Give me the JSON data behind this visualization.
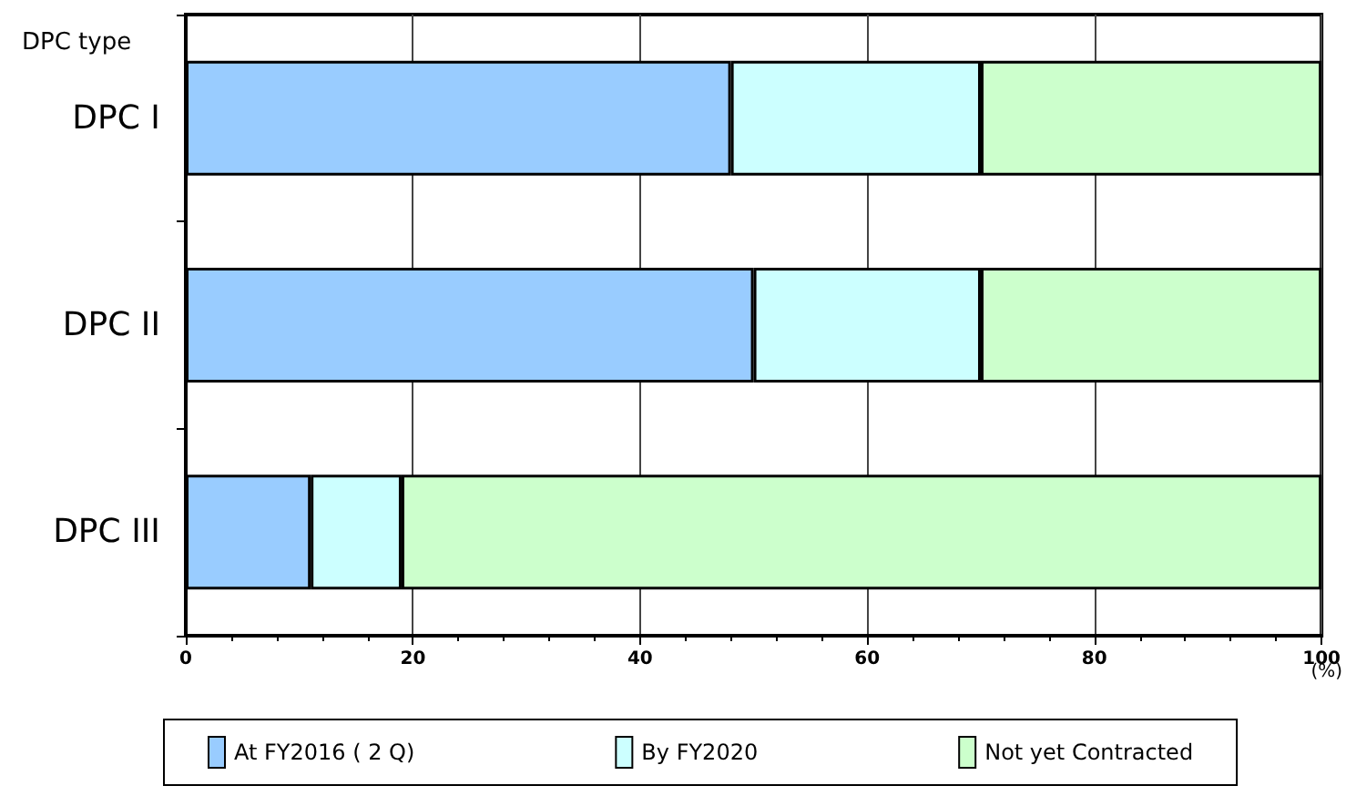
{
  "chart_data": {
    "type": "bar",
    "orientation": "horizontal",
    "stacked": true,
    "ylabel": "DPC type",
    "xlabel": "(%)",
    "categories": [
      "DPC I",
      "DPC II",
      "DPC III"
    ],
    "series": [
      {
        "name": "At FY2016 ( 2 Q)",
        "color": "#99ccff",
        "values": [
          48,
          50,
          11
        ]
      },
      {
        "name": "By FY2020",
        "color": "#ccffff",
        "values": [
          22,
          20,
          8
        ]
      },
      {
        "name": "Not yet Contracted",
        "color": "#ccffcc",
        "values": [
          30,
          30,
          81
        ]
      }
    ],
    "xlim": [
      0,
      100
    ],
    "xticks": [
      0,
      20,
      40,
      60,
      80,
      100
    ],
    "grid": "x",
    "legend": "bottom"
  }
}
